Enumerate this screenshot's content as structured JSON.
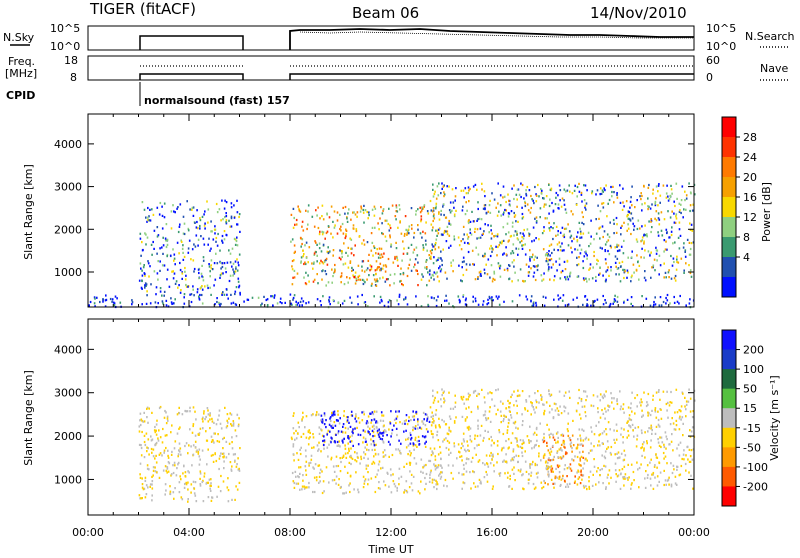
{
  "header": {
    "radar": "TIGER (fitACF)",
    "beam": "Beam 06",
    "date": "14/Nov/2010"
  },
  "top_panels": {
    "nsky_label": "N.Sky",
    "nsky_ticks": [
      "10^5",
      "10^0"
    ],
    "nsearch_label": "N.Search",
    "nsearch_ticks": [
      "10^5",
      "10^0"
    ],
    "freq_label_line1": "Freq.",
    "freq_label_line2": "[MHz]",
    "freq_ticks": [
      "18",
      "8"
    ],
    "nave_label": "Nave",
    "nave_ticks": [
      "60",
      "0"
    ],
    "cpid_label": "CPID",
    "cpid_text": "normalsound (fast) 157"
  },
  "x_axis": {
    "label": "Time UT",
    "ticks": [
      "00:00",
      "04:00",
      "08:00",
      "12:00",
      "16:00",
      "20:00",
      "00:00"
    ]
  },
  "power_colorbar": {
    "label": "Power [dB]",
    "ticks": [
      "28",
      "24",
      "20",
      "16",
      "12",
      "8",
      "4"
    ],
    "colors": [
      "#ff0000",
      "#ff3300",
      "#ff7a00",
      "#f6a000",
      "#f8d800",
      "#8fd080",
      "#3a9a70",
      "#2050b0",
      "#0010ff"
    ]
  },
  "velocity_colorbar": {
    "label": "Velocity [m s⁻¹]",
    "ticks": [
      "200",
      "100",
      "50",
      "15",
      "-15",
      "-50",
      "-100",
      "-200"
    ],
    "colors": [
      "#1010ff",
      "#1a3cc8",
      "#1e6a3e",
      "#55c040",
      "#bdbdbd",
      "#ffd000",
      "#ff9a00",
      "#ff5a00",
      "#ff0000"
    ]
  },
  "chart_data": [
    {
      "type": "heatmap",
      "title": "",
      "xlabel": "Time UT",
      "ylabel": "Slant Range [km]",
      "x_range_hours": [
        0,
        24
      ],
      "ylim": [
        180,
        4700
      ],
      "y_ticks": [
        "4000",
        "3000",
        "2000",
        "1000"
      ],
      "y_tick_values": [
        4000,
        3000,
        2000,
        1000
      ],
      "colorbar": "Power [dB]",
      "data_gaps_ut": [
        [
          0,
          2
        ],
        [
          6,
          8
        ]
      ],
      "scatter_regions": [
        {
          "t_start": 2.0,
          "t_end": 6.0,
          "r_low": 500,
          "r_high": 2700,
          "peak_db": 18
        },
        {
          "t_start": 8.0,
          "t_end": 13.8,
          "r_low": 700,
          "r_high": 2600,
          "peak_db": 28
        },
        {
          "t_start": 10.2,
          "t_end": 11.8,
          "r_low": 800,
          "r_high": 1200,
          "peak_db": 30
        },
        {
          "t_start": 13.5,
          "t_end": 24.0,
          "r_low": 800,
          "r_high": 3100,
          "peak_db": 22
        },
        {
          "t_start": 0,
          "t_end": 24,
          "r_low": 200,
          "r_high": 500,
          "peak_db": 12
        }
      ]
    },
    {
      "type": "heatmap",
      "title": "",
      "xlabel": "Time UT",
      "ylabel": "Slant Range [km]",
      "x_range_hours": [
        0,
        24
      ],
      "ylim": [
        180,
        4700
      ],
      "y_ticks": [
        "4000",
        "3000",
        "2000",
        "1000"
      ],
      "y_tick_values": [
        4000,
        3000,
        2000,
        1000
      ],
      "colorbar": "Velocity [m s⁻¹]",
      "data_gaps_ut": [
        [
          0,
          2
        ],
        [
          6,
          8
        ]
      ],
      "scatter_regions": [
        {
          "t_start": 2.0,
          "t_end": 6.0,
          "r_low": 500,
          "r_high": 2700,
          "velocity": -15
        },
        {
          "t_start": 8.0,
          "t_end": 13.8,
          "r_low": 700,
          "r_high": 2600,
          "velocity": -15
        },
        {
          "t_start": 9.2,
          "t_end": 13.5,
          "r_low": 1800,
          "r_high": 2600,
          "velocity": 200
        },
        {
          "t_start": 18.0,
          "t_end": 19.6,
          "r_low": 900,
          "r_high": 2100,
          "velocity": -100
        },
        {
          "t_start": 13.5,
          "t_end": 24.0,
          "r_low": 800,
          "r_high": 3100,
          "velocity": -15
        }
      ]
    }
  ]
}
